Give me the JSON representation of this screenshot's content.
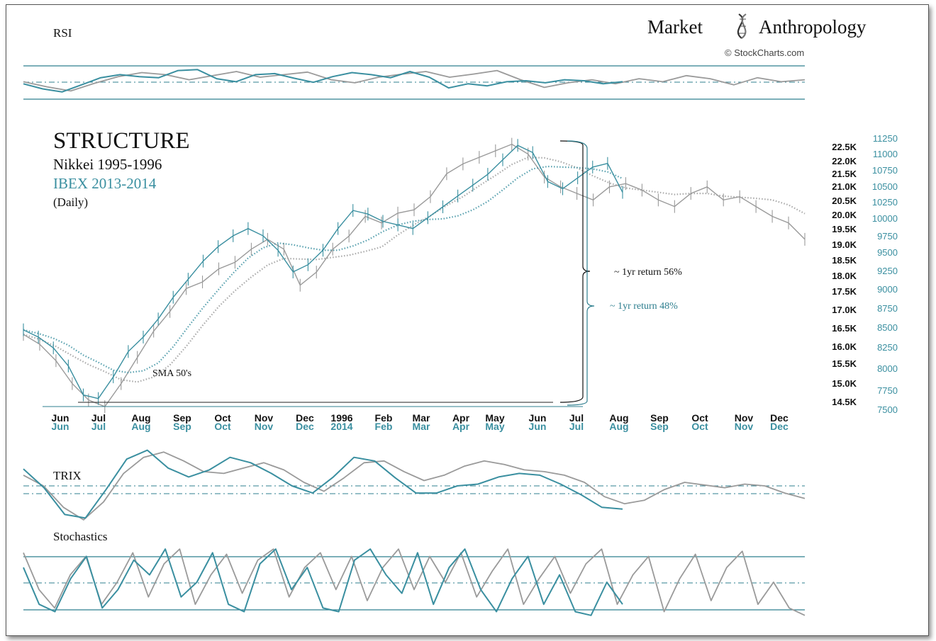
{
  "brand": {
    "word1": "Market",
    "word2": "Anthropology",
    "credit": "© StockCharts.com"
  },
  "panels": {
    "rsi": "RSI",
    "trix": "TRIX",
    "stochastics": "Stochastics",
    "price_title": "STRUCTURE",
    "series_a_label": "Nikkei 1995-1996",
    "series_b_label": "IBEX 2013-2014",
    "frequency": "(Daily)",
    "sma_note": "SMA 50's"
  },
  "colors": {
    "series_a": "#9a9a9a",
    "series_b": "#3a8fa0",
    "guide": "#2f7f8f",
    "text": "#111111"
  },
  "annotations": [
    {
      "text": "~ 1yr return 56%",
      "series": "a"
    },
    {
      "text": "~ 1yr return 48%",
      "series": "b"
    }
  ],
  "chart_data": [
    {
      "type": "line",
      "name": "price",
      "x_axis_a": [
        "Jun",
        "Jul",
        "Aug",
        "Sep",
        "Oct",
        "Nov",
        "Dec",
        "1996",
        "Feb",
        "Mar",
        "Apr",
        "May",
        "Jun",
        "Jul",
        "Aug",
        "Sep",
        "Oct",
        "Nov",
        "Dec"
      ],
      "x_axis_b": [
        "Jun",
        "Jul",
        "Aug",
        "Sep",
        "Oct",
        "Nov",
        "Dec",
        "2014",
        "Feb",
        "Mar",
        "Apr",
        "May",
        "Jun",
        "Jul",
        "Aug",
        "Sep",
        "Oct",
        "Nov",
        "Dec"
      ],
      "y_axis_a_ticks": [
        "22.5K",
        "22.0K",
        "21.5K",
        "21.0K",
        "20.5K",
        "20.0K",
        "19.5K",
        "19.0K",
        "18.5K",
        "18.0K",
        "17.5K",
        "17.0K",
        "16.5K",
        "16.0K",
        "15.5K",
        "15.0K",
        "14.5K"
      ],
      "y_axis_b_ticks": [
        "11250",
        "11000",
        "10750",
        "10500",
        "10250",
        "10000",
        "9750",
        "9500",
        "9250",
        "9000",
        "8750",
        "8500",
        "8250",
        "8000",
        "7750",
        "7500"
      ],
      "ylim_a": [
        14500,
        22600
      ],
      "ylim_b": [
        7500,
        11250
      ],
      "series_a_close": [
        16700,
        16400,
        15900,
        15200,
        14700,
        14500,
        15200,
        16000,
        16800,
        17400,
        18100,
        18300,
        18700,
        18900,
        19300,
        19600,
        19300,
        18200,
        18600,
        19300,
        19700,
        20300,
        20100,
        20400,
        20500,
        20900,
        21600,
        21900,
        22100,
        22300,
        22500,
        22200,
        21500,
        21200,
        21000,
        20800,
        21200,
        21300,
        21100,
        20800,
        20600,
        21000,
        21200,
        20800,
        20900,
        20600,
        20300,
        20100,
        19600
      ],
      "series_b_close": [
        8600,
        8500,
        8350,
        8100,
        7700,
        7650,
        7950,
        8300,
        8500,
        8750,
        9050,
        9300,
        9550,
        9750,
        9900,
        10000,
        9900,
        9700,
        9400,
        9500,
        9700,
        10000,
        10250,
        10200,
        10100,
        10050,
        10000,
        10150,
        10300,
        10450,
        10600,
        10750,
        10950,
        11150,
        11050,
        10650,
        10550,
        10700,
        10850,
        10900,
        10500
      ]
    },
    {
      "type": "line",
      "name": "rsi",
      "series_a": [
        48,
        38,
        30,
        45,
        58,
        66,
        62,
        52,
        60,
        68,
        57,
        62,
        67,
        52,
        46,
        57,
        63,
        68,
        57,
        63,
        70,
        52,
        37,
        46,
        52,
        44,
        54,
        48,
        60,
        54,
        42,
        56,
        48,
        52
      ],
      "series_b": [
        44,
        34,
        28,
        42,
        56,
        62,
        58,
        56,
        70,
        72,
        54,
        48,
        62,
        64,
        55,
        47,
        58,
        66,
        62,
        56,
        68,
        57,
        36,
        44,
        40,
        48,
        50,
        46,
        52,
        50,
        44,
        48
      ]
    },
    {
      "type": "line",
      "name": "trix",
      "series_a": [
        58,
        46,
        22,
        8,
        28,
        60,
        78,
        84,
        74,
        62,
        60,
        66,
        72,
        64,
        50,
        40,
        55,
        72,
        74,
        62,
        52,
        58,
        68,
        74,
        70,
        64,
        62,
        58,
        50,
        34,
        26,
        30,
        42,
        50,
        47,
        44,
        48,
        46,
        38,
        32
      ],
      "series_b": [
        65,
        44,
        14,
        10,
        42,
        76,
        86,
        66,
        56,
        64,
        78,
        72,
        60,
        46,
        38,
        56,
        78,
        74,
        55,
        38,
        38,
        46,
        48,
        56,
        60,
        58,
        48,
        36,
        22,
        20
      ]
    },
    {
      "type": "line",
      "name": "stochastics",
      "series_a": [
        90,
        40,
        15,
        60,
        85,
        20,
        50,
        90,
        30,
        75,
        95,
        20,
        60,
        88,
        35,
        80,
        95,
        30,
        70,
        90,
        40,
        85,
        25,
        70,
        95,
        40,
        85,
        50,
        90,
        30,
        65,
        95,
        20,
        55,
        85,
        35,
        75,
        95,
        20,
        60,
        85,
        10,
        55,
        88,
        25,
        70,
        92,
        20,
        50,
        15,
        5
      ],
      "series_b": [
        70,
        20,
        10,
        55,
        85,
        15,
        40,
        80,
        60,
        95,
        30,
        50,
        90,
        20,
        10,
        75,
        95,
        40,
        70,
        15,
        10,
        80,
        95,
        60,
        35,
        90,
        20,
        70,
        95,
        40,
        10,
        55,
        85,
        20,
        60,
        10,
        5,
        50,
        20
      ]
    }
  ]
}
